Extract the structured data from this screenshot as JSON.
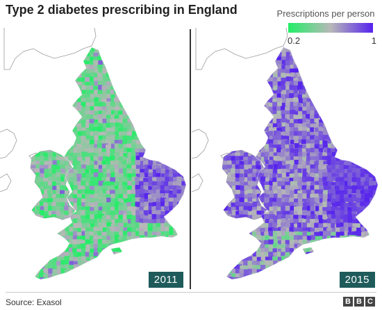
{
  "title": "Type 2 diabetes prescribing in England",
  "legend": {
    "title": "Prescriptions per person",
    "min_label": "0.2",
    "max_label": "1",
    "min_value": 0.2,
    "max_value": 1,
    "colors": {
      "low": "#22ee66",
      "mid": "#b8b8b8",
      "high": "#5522ee"
    }
  },
  "maps": [
    {
      "year": "2011",
      "dominant_level": "low"
    },
    {
      "year": "2015",
      "dominant_level": "high"
    }
  ],
  "colors": {
    "year_badge": "#1f5b5b",
    "outline": "#9a9a9a"
  },
  "source": "Source: Exasol",
  "brand": [
    "B",
    "B",
    "C"
  ]
}
